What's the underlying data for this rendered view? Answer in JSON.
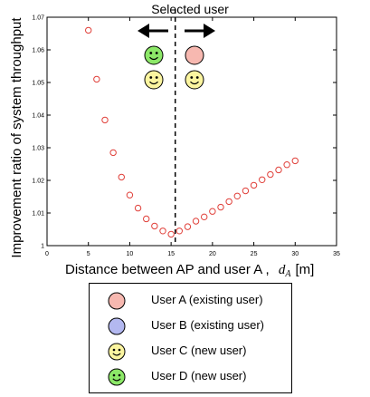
{
  "chart_data": {
    "type": "scatter",
    "title": "Selected user",
    "xlabel": "Distance between AP and user A ,",
    "xlabel_symbol": "d",
    "xlabel_subscript": "A",
    "xlabel_unit": "[m]",
    "ylabel": "Improvement ratio of system throughput",
    "xlim": [
      0,
      35
    ],
    "ylim": [
      1,
      1.07
    ],
    "x_ticks": [
      0,
      5,
      10,
      15,
      20,
      25,
      30,
      35
    ],
    "y_ticks": [
      1,
      1.01,
      1.02,
      1.03,
      1.04,
      1.05,
      1.06,
      1.07
    ],
    "x_tick_labels": [
      "0",
      "5",
      "10",
      "15",
      "20",
      "25",
      "30",
      "35"
    ],
    "y_tick_labels": [
      "1",
      "1.01",
      "1.02",
      "1.03",
      "1.04",
      "1.05",
      "1.06",
      "1.07"
    ],
    "divider_x": 15.5,
    "marker_color": "#e0403a",
    "points": [
      {
        "x": 5,
        "y": 1.066
      },
      {
        "x": 6,
        "y": 1.051
      },
      {
        "x": 7,
        "y": 1.0385
      },
      {
        "x": 8,
        "y": 1.0285
      },
      {
        "x": 9,
        "y": 1.021
      },
      {
        "x": 10,
        "y": 1.0155
      },
      {
        "x": 11,
        "y": 1.0115
      },
      {
        "x": 12,
        "y": 1.0082
      },
      {
        "x": 13,
        "y": 1.006
      },
      {
        "x": 14,
        "y": 1.0045
      },
      {
        "x": 15,
        "y": 1.0035
      },
      {
        "x": 16,
        "y": 1.0045
      },
      {
        "x": 17,
        "y": 1.0058
      },
      {
        "x": 18,
        "y": 1.0075
      },
      {
        "x": 19,
        "y": 1.0088
      },
      {
        "x": 20,
        "y": 1.0105
      },
      {
        "x": 21,
        "y": 1.0118
      },
      {
        "x": 22,
        "y": 1.0135
      },
      {
        "x": 23,
        "y": 1.0152
      },
      {
        "x": 24,
        "y": 1.0168
      },
      {
        "x": 25,
        "y": 1.0185
      },
      {
        "x": 26,
        "y": 1.0202
      },
      {
        "x": 27,
        "y": 1.0218
      },
      {
        "x": 28,
        "y": 1.0232
      },
      {
        "x": 29,
        "y": 1.0248
      },
      {
        "x": 30,
        "y": 1.026
      }
    ],
    "annotations": {
      "left_region_users": [
        "User D",
        "User C"
      ],
      "right_region_users": [
        "User A",
        "User C"
      ],
      "left_arrow_icon": "left-arrow-icon",
      "right_arrow_icon": "right-arrow-icon"
    }
  },
  "legend": {
    "items": [
      {
        "label": "User A (existing user)",
        "icon": "circle-icon",
        "color": "#f7b8b0"
      },
      {
        "label": "User B (existing user)",
        "icon": "circle-icon",
        "color": "#b3b8f0"
      },
      {
        "label": "User C (new user)",
        "icon": "smiley-icon",
        "color": "#fbf5a0"
      },
      {
        "label": "User D (new user)",
        "icon": "smiley-icon",
        "color": "#8ce868"
      }
    ]
  }
}
